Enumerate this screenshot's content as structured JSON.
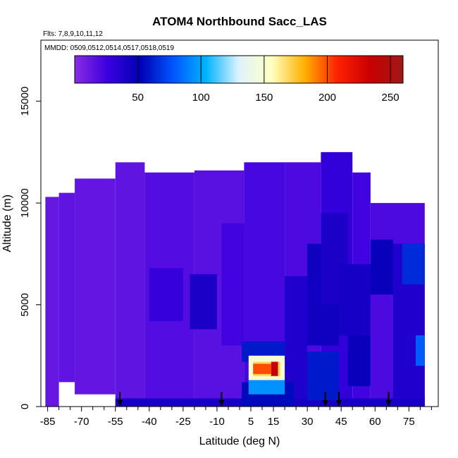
{
  "chart_data": {
    "type": "heatmap",
    "title": "ATOM4 Northbound Sacc_LAS",
    "flights_text": "Flts: 7,8,9,10,11,12",
    "dates_text": "MMDD: 0509,0512,0514,0517,0518,0519",
    "xlabel": "Latitude (deg N)",
    "ylabel": "Altitude (m)",
    "xlim": [
      -88,
      88
    ],
    "ylim": [
      0,
      18000
    ],
    "x_ticks": [
      -85,
      -70,
      -55,
      -40,
      -25,
      -10,
      5,
      15,
      30,
      45,
      60,
      75
    ],
    "x_tick_labels": [
      "-85",
      "-70",
      "-55",
      "-40",
      "-25",
      "-10",
      "5",
      "15",
      "30",
      "45",
      "60",
      "75"
    ],
    "y_ticks": [
      0,
      5000,
      10000,
      15000
    ],
    "y_tick_labels": [
      "0",
      "5000",
      "10000",
      "15000"
    ],
    "colorbar": {
      "min": 0,
      "max": 260,
      "ticks": [
        50,
        100,
        150,
        200,
        250
      ],
      "tick_labels": [
        "50",
        "100",
        "150",
        "200",
        "250"
      ],
      "stops": [
        "#8a2be2",
        "#3b00e0",
        "#0000b4",
        "#0055ff",
        "#00b4ff",
        "#dff3ff",
        "#ffffc0",
        "#ffb000",
        "#ff2000",
        "#c80000",
        "#a01818"
      ]
    },
    "arrow_latitudes": [
      -53,
      -8,
      38,
      44,
      66
    ],
    "regions": [
      {
        "lat": [
          -86,
          -80
        ],
        "alt": [
          0,
          10300
        ],
        "value": 12
      },
      {
        "lat": [
          -80,
          -73
        ],
        "alt": [
          1200,
          10500
        ],
        "value": 14
      },
      {
        "lat": [
          -73,
          -55
        ],
        "alt": [
          600,
          11200
        ],
        "value": 13
      },
      {
        "lat": [
          -55,
          -42
        ],
        "alt": [
          0,
          12000
        ],
        "value": 14
      },
      {
        "lat": [
          -42,
          -20
        ],
        "alt": [
          0,
          11500
        ],
        "value": 18
      },
      {
        "lat": [
          -20,
          2
        ],
        "alt": [
          0,
          11600
        ],
        "value": 16
      },
      {
        "lat": [
          2,
          20
        ],
        "alt": [
          0,
          12000
        ],
        "value": 22
      },
      {
        "lat": [
          20,
          36
        ],
        "alt": [
          0,
          12000
        ],
        "value": 20
      },
      {
        "lat": [
          36,
          50
        ],
        "alt": [
          0,
          12500
        ],
        "value": 30
      },
      {
        "lat": [
          50,
          58
        ],
        "alt": [
          0,
          11500
        ],
        "value": 24
      },
      {
        "lat": [
          58,
          82
        ],
        "alt": [
          0,
          10000
        ],
        "value": 20
      },
      {
        "lat": [
          -40,
          -25
        ],
        "alt": [
          4200,
          6800
        ],
        "value": 28
      },
      {
        "lat": [
          -22,
          -10
        ],
        "alt": [
          3800,
          6500
        ],
        "value": 40
      },
      {
        "lat": [
          -8,
          2
        ],
        "alt": [
          3000,
          9000
        ],
        "value": 24
      },
      {
        "lat": [
          20,
          30
        ],
        "alt": [
          300,
          6400
        ],
        "value": 38
      },
      {
        "lat": [
          30,
          44
        ],
        "alt": [
          3000,
          8000
        ],
        "value": 45
      },
      {
        "lat": [
          36,
          48
        ],
        "alt": [
          5000,
          9500
        ],
        "value": 40
      },
      {
        "lat": [
          44,
          58
        ],
        "alt": [
          3500,
          7000
        ],
        "value": 42
      },
      {
        "lat": [
          58,
          68
        ],
        "alt": [
          5500,
          8200
        ],
        "value": 48
      },
      {
        "lat": [
          68,
          82
        ],
        "alt": [
          0,
          8000
        ],
        "value": 38
      },
      {
        "lat": [
          72,
          82
        ],
        "alt": [
          6000,
          8000
        ],
        "value": 65
      },
      {
        "lat": [
          78,
          82
        ],
        "alt": [
          2000,
          3500
        ],
        "value": 80
      },
      {
        "lat": [
          -55,
          82
        ],
        "alt": [
          0,
          400
        ],
        "value": 42
      },
      {
        "lat": [
          1,
          24
        ],
        "alt": [
          0,
          1200
        ],
        "value": 55
      },
      {
        "lat": [
          30,
          44
        ],
        "alt": [
          300,
          2700
        ],
        "value": 60
      },
      {
        "lat": [
          48,
          58
        ],
        "alt": [
          1000,
          3500
        ],
        "value": 48
      },
      {
        "lat": [
          1,
          20
        ],
        "alt": [
          2200,
          3200
        ],
        "value": 60
      },
      {
        "lat": [
          4,
          20
        ],
        "alt": [
          600,
          1300
        ],
        "value": 95
      },
      {
        "lat": [
          4,
          20
        ],
        "alt": [
          1300,
          2500
        ],
        "value": 150
      },
      {
        "lat": [
          6,
          18
        ],
        "alt": [
          1500,
          2200
        ],
        "value": 170
      },
      {
        "lat": [
          6,
          14
        ],
        "alt": [
          1600,
          2100
        ],
        "value": 200
      },
      {
        "lat": [
          14,
          17
        ],
        "alt": [
          1500,
          2200
        ],
        "value": 235
      }
    ]
  }
}
